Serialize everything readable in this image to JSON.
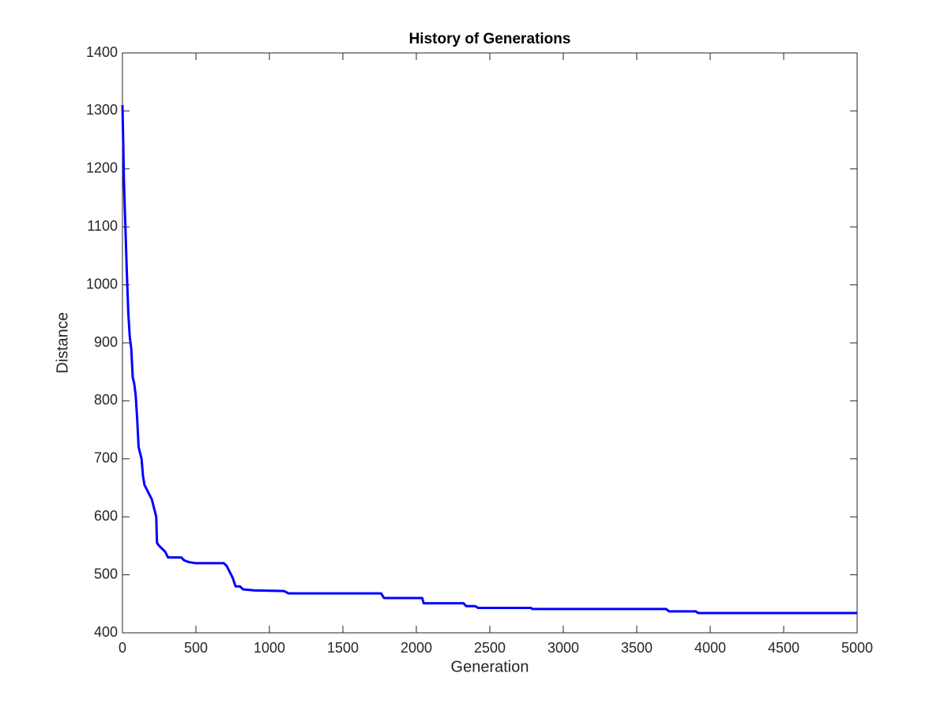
{
  "chart_data": {
    "type": "line",
    "title": "History of Generations",
    "x_label": "Generation",
    "y_label": "Distance",
    "x": [
      0,
      5,
      10,
      20,
      30,
      40,
      50,
      60,
      70,
      80,
      90,
      100,
      110,
      120,
      130,
      140,
      150,
      170,
      190,
      200,
      210,
      220,
      230,
      235,
      250,
      270,
      290,
      310,
      400,
      420,
      450,
      500,
      690,
      710,
      730,
      750,
      770,
      800,
      820,
      900,
      1100,
      1130,
      1760,
      1780,
      2040,
      2050,
      2320,
      2340,
      2400,
      2420,
      2780,
      2790,
      3700,
      3720,
      3900,
      3920,
      5000
    ],
    "series": [
      {
        "name": "Distance",
        "color": "#0000ff",
        "values": [
          1310,
          1250,
          1180,
          1100,
          1020,
          950,
          910,
          890,
          840,
          830,
          810,
          770,
          720,
          710,
          700,
          670,
          655,
          645,
          635,
          630,
          620,
          610,
          600,
          555,
          550,
          545,
          540,
          530,
          530,
          525,
          522,
          520,
          520,
          515,
          505,
          495,
          480,
          480,
          475,
          473,
          472,
          468,
          468,
          460,
          460,
          451,
          451,
          446,
          446,
          443,
          443,
          441,
          441,
          437,
          437,
          434,
          434
        ]
      }
    ],
    "xlim": [
      0,
      5000
    ],
    "xticks": [
      0,
      500,
      1000,
      1500,
      2000,
      2500,
      3000,
      3500,
      4000,
      4500,
      5000
    ],
    "ylim": [
      400,
      1400
    ],
    "yticks": [
      400,
      500,
      600,
      700,
      800,
      900,
      1000,
      1100,
      1200,
      1300,
      1400
    ],
    "grid": false
  }
}
